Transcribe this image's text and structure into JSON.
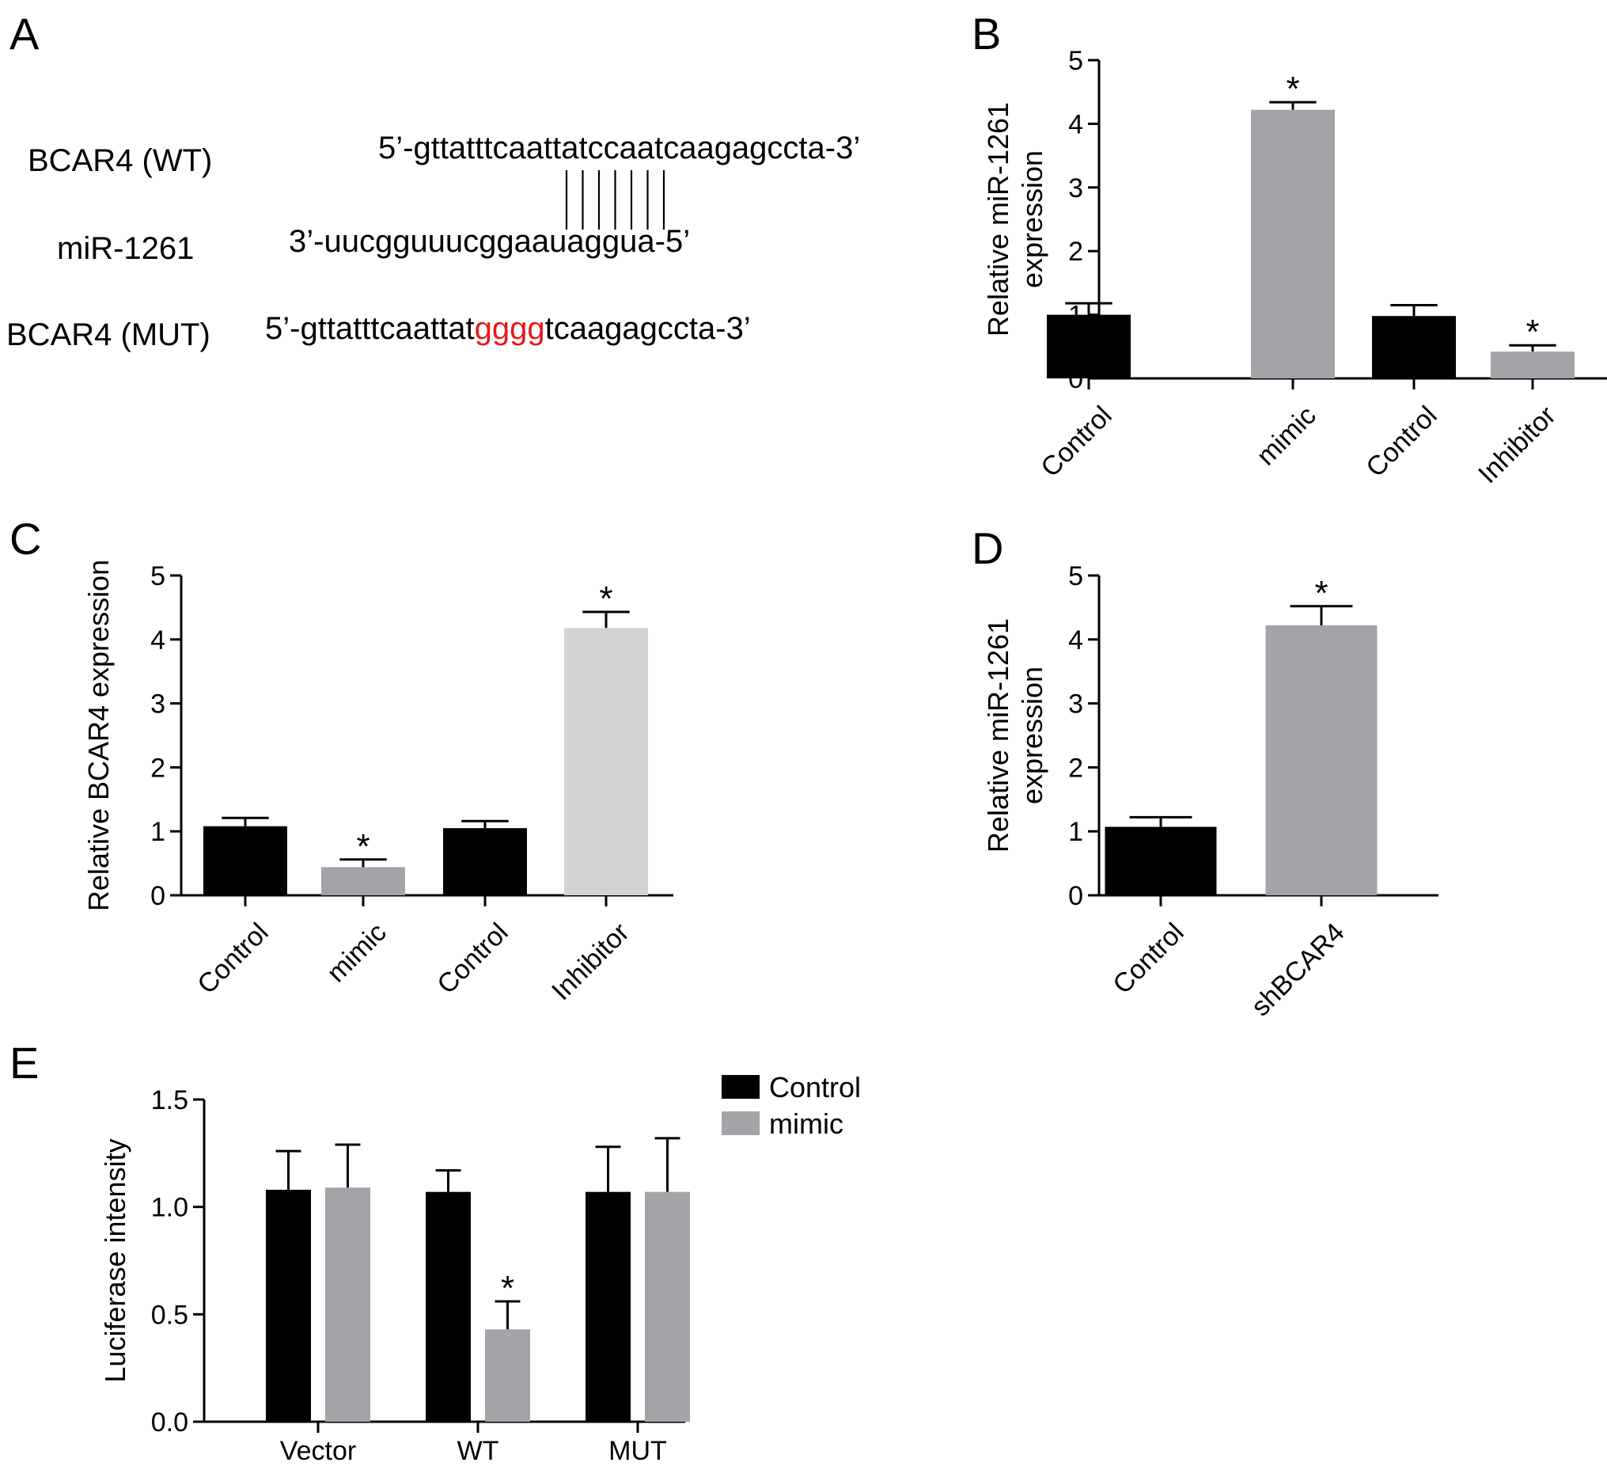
{
  "panels": {
    "A": {
      "letter": "A",
      "wt_label": "BCAR4 (WT)",
      "mir_label": "miR-1261",
      "mut_label": "BCAR4 (MUT)",
      "wt_seq": "5’-gttatttcaattatccaatcaagagccta-3’",
      "mir_seq": "3’-uucgguuucggaauaggua-5’",
      "mut_seq_prefix": "5’-gttatttcaattat",
      "mut_seq_highlight": "gggg",
      "mut_seq_suffix": "tcaagagccta-3’",
      "highlight_color": "#e8191b",
      "pair_lines": 7
    }
  },
  "chart_data": [
    {
      "panel": "B",
      "type": "bar",
      "ylabel_line1": "Relative  miR-1261",
      "ylabel_line2": "expression",
      "ylim": [
        0,
        5
      ],
      "yticks": [
        "0",
        "1",
        "2",
        "3",
        "4",
        "5"
      ],
      "categories": [
        "Control",
        "mimic",
        "Control",
        "Inhibitor"
      ],
      "values": [
        1.0,
        4.22,
        0.98,
        0.42
      ],
      "errors": [
        0.18,
        0.12,
        0.17,
        0.1
      ],
      "colors": [
        "#000000",
        "#a3a3a8",
        "#000000",
        "#a3a3a8"
      ],
      "significant": [
        false,
        true,
        false,
        true
      ],
      "star": "*"
    },
    {
      "panel": "C",
      "type": "bar",
      "ylabel": "Relative BCAR4 expression",
      "ylim": [
        0,
        5
      ],
      "yticks": [
        "0",
        "1",
        "2",
        "3",
        "4",
        "5"
      ],
      "categories": [
        "Control",
        "mimic",
        "Control",
        "Inhibitor"
      ],
      "values": [
        1.08,
        0.44,
        1.05,
        4.18
      ],
      "errors": [
        0.13,
        0.12,
        0.11,
        0.25
      ],
      "colors": [
        "#000000",
        "#a3a3a8",
        "#000000",
        "#d3d3d3"
      ],
      "significant": [
        false,
        true,
        false,
        true
      ],
      "star": "*"
    },
    {
      "panel": "D",
      "type": "bar",
      "ylabel_line1": "Relative  miR-1261",
      "ylabel_line2": "expression",
      "ylim": [
        0,
        5
      ],
      "yticks": [
        "0",
        "1",
        "2",
        "3",
        "4",
        "5"
      ],
      "categories": [
        "Control",
        "shBCAR4"
      ],
      "values": [
        1.07,
        4.22
      ],
      "errors": [
        0.15,
        0.3
      ],
      "colors": [
        "#000000",
        "#a3a3a8"
      ],
      "significant": [
        false,
        true
      ],
      "star": "*"
    },
    {
      "panel": "E",
      "type": "bar",
      "ylabel": "Luciferase intensity",
      "ylim": [
        0,
        1.5
      ],
      "yticks": [
        "0.0",
        "0.5",
        "1.0",
        "1.5"
      ],
      "categories": [
        "Vector",
        "WT",
        "MUT"
      ],
      "series": [
        {
          "name": "Control",
          "color": "#000000",
          "values": [
            1.08,
            1.07,
            1.07
          ],
          "errors": [
            0.18,
            0.1,
            0.21
          ],
          "significant": [
            false,
            false,
            false
          ]
        },
        {
          "name": "mimic",
          "color": "#a3a3a8",
          "values": [
            1.09,
            0.43,
            1.07
          ],
          "errors": [
            0.2,
            0.13,
            0.25
          ],
          "significant": [
            false,
            true,
            false
          ]
        }
      ],
      "legend": "top-right",
      "star": "*"
    }
  ]
}
